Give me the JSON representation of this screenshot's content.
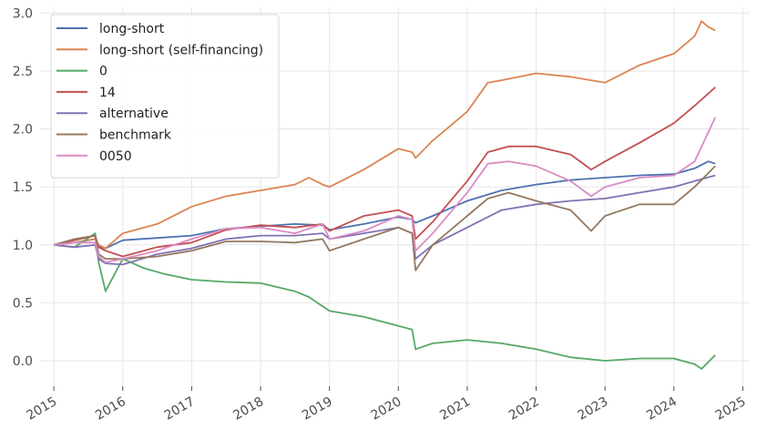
{
  "chart_data": {
    "type": "line",
    "title": "",
    "xlabel": "",
    "ylabel": "",
    "xlim": [
      2014.8,
      2025.1
    ],
    "ylim": [
      -0.22,
      3.05
    ],
    "grid": true,
    "legend_position": "top-left",
    "x_ticks": [
      {
        "value": 2015,
        "label": "2015"
      },
      {
        "value": 2016,
        "label": "2016"
      },
      {
        "value": 2017,
        "label": "2017"
      },
      {
        "value": 2018,
        "label": "2018"
      },
      {
        "value": 2019,
        "label": "2019"
      },
      {
        "value": 2020,
        "label": "2020"
      },
      {
        "value": 2021,
        "label": "2021"
      },
      {
        "value": 2022,
        "label": "2022"
      },
      {
        "value": 2023,
        "label": "2023"
      },
      {
        "value": 2024,
        "label": "2024"
      },
      {
        "value": 2025,
        "label": "2025"
      }
    ],
    "y_ticks": [
      {
        "value": 0.0,
        "label": "0.0"
      },
      {
        "value": 0.5,
        "label": "0.5"
      },
      {
        "value": 1.0,
        "label": "1.0"
      },
      {
        "value": 1.5,
        "label": "1.5"
      },
      {
        "value": 2.0,
        "label": "2.0"
      },
      {
        "value": 2.5,
        "label": "2.5"
      },
      {
        "value": 3.0,
        "label": "3.0"
      }
    ],
    "series": [
      {
        "name": "long-short",
        "color": "#4c72b0",
        "x": [
          2015.0,
          2015.3,
          2015.6,
          2015.65,
          2015.75,
          2016.0,
          2016.5,
          2017.0,
          2017.5,
          2018.0,
          2018.5,
          2018.9,
          2019.0,
          2019.5,
          2020.0,
          2020.2,
          2020.25,
          2020.5,
          2021.0,
          2021.5,
          2022.0,
          2022.5,
          2023.0,
          2023.5,
          2024.0,
          2024.3,
          2024.5,
          2024.6
        ],
        "y": [
          1.0,
          1.02,
          1.05,
          0.99,
          0.97,
          1.04,
          1.06,
          1.08,
          1.14,
          1.16,
          1.18,
          1.17,
          1.13,
          1.18,
          1.24,
          1.22,
          1.19,
          1.25,
          1.38,
          1.47,
          1.52,
          1.56,
          1.58,
          1.6,
          1.61,
          1.66,
          1.72,
          1.7
        ]
      },
      {
        "name": "long-short (self-financing)",
        "color": "#dd8452",
        "x": [
          2015.0,
          2015.3,
          2015.6,
          2015.65,
          2015.75,
          2016.0,
          2016.5,
          2017.0,
          2017.5,
          2018.0,
          2018.5,
          2018.7,
          2018.9,
          2019.0,
          2019.5,
          2020.0,
          2020.2,
          2020.25,
          2020.5,
          2021.0,
          2021.3,
          2021.5,
          2022.0,
          2022.5,
          2023.0,
          2023.5,
          2024.0,
          2024.3,
          2024.4,
          2024.5,
          2024.6
        ],
        "y": [
          1.0,
          1.02,
          1.05,
          1.0,
          0.97,
          1.1,
          1.18,
          1.33,
          1.42,
          1.47,
          1.52,
          1.58,
          1.52,
          1.5,
          1.65,
          1.83,
          1.8,
          1.75,
          1.9,
          2.15,
          2.4,
          2.42,
          2.48,
          2.45,
          2.4,
          2.55,
          2.65,
          2.8,
          2.93,
          2.88,
          2.85
        ]
      },
      {
        "name": "0",
        "color": "#55a868",
        "x": [
          2015.0,
          2015.3,
          2015.6,
          2015.65,
          2015.75,
          2016.0,
          2016.3,
          2016.6,
          2017.0,
          2017.5,
          2018.0,
          2018.5,
          2018.7,
          2019.0,
          2019.5,
          2020.0,
          2020.2,
          2020.25,
          2020.5,
          2021.0,
          2021.5,
          2022.0,
          2022.5,
          2023.0,
          2023.5,
          2024.0,
          2024.3,
          2024.4,
          2024.6
        ],
        "y": [
          1.0,
          0.98,
          1.1,
          0.85,
          0.6,
          0.88,
          0.8,
          0.75,
          0.7,
          0.68,
          0.67,
          0.6,
          0.55,
          0.43,
          0.38,
          0.3,
          0.27,
          0.1,
          0.15,
          0.18,
          0.15,
          0.1,
          0.03,
          0.0,
          0.02,
          0.02,
          -0.03,
          -0.07,
          0.05
        ]
      },
      {
        "name": "14",
        "color": "#c44e52",
        "x": [
          2015.0,
          2015.3,
          2015.6,
          2015.65,
          2015.75,
          2016.0,
          2016.5,
          2017.0,
          2017.5,
          2018.0,
          2018.5,
          2018.9,
          2019.0,
          2019.5,
          2020.0,
          2020.2,
          2020.25,
          2020.5,
          2021.0,
          2021.3,
          2021.6,
          2022.0,
          2022.5,
          2022.8,
          2023.0,
          2023.5,
          2024.0,
          2024.3,
          2024.6
        ],
        "y": [
          1.0,
          1.04,
          1.08,
          0.98,
          0.95,
          0.9,
          0.98,
          1.02,
          1.13,
          1.17,
          1.15,
          1.18,
          1.12,
          1.25,
          1.3,
          1.25,
          1.05,
          1.2,
          1.55,
          1.8,
          1.85,
          1.85,
          1.78,
          1.65,
          1.72,
          1.88,
          2.05,
          2.2,
          2.36
        ]
      },
      {
        "name": "alternative",
        "color": "#8172b3",
        "x": [
          2015.0,
          2015.3,
          2015.6,
          2015.65,
          2015.75,
          2016.0,
          2016.5,
          2017.0,
          2017.5,
          2018.0,
          2018.5,
          2018.9,
          2019.0,
          2019.5,
          2020.0,
          2020.2,
          2020.25,
          2020.5,
          2021.0,
          2021.5,
          2022.0,
          2022.5,
          2023.0,
          2023.5,
          2024.0,
          2024.3,
          2024.6
        ],
        "y": [
          1.0,
          0.98,
          1.0,
          0.88,
          0.84,
          0.83,
          0.92,
          0.97,
          1.05,
          1.08,
          1.08,
          1.1,
          1.05,
          1.1,
          1.15,
          1.1,
          0.88,
          1.0,
          1.15,
          1.3,
          1.35,
          1.38,
          1.4,
          1.45,
          1.5,
          1.55,
          1.6
        ]
      },
      {
        "name": "benchmark",
        "color": "#937860",
        "x": [
          2015.0,
          2015.3,
          2015.6,
          2015.65,
          2015.75,
          2016.0,
          2016.5,
          2017.0,
          2017.5,
          2018.0,
          2018.5,
          2018.9,
          2019.0,
          2019.5,
          2020.0,
          2020.2,
          2020.25,
          2020.5,
          2021.0,
          2021.3,
          2021.6,
          2022.0,
          2022.5,
          2022.8,
          2023.0,
          2023.5,
          2024.0,
          2024.3,
          2024.6
        ],
        "y": [
          1.0,
          1.05,
          1.08,
          0.92,
          0.88,
          0.88,
          0.9,
          0.95,
          1.03,
          1.03,
          1.02,
          1.05,
          0.95,
          1.05,
          1.15,
          1.1,
          0.78,
          1.0,
          1.25,
          1.4,
          1.45,
          1.38,
          1.3,
          1.12,
          1.25,
          1.35,
          1.35,
          1.5,
          1.68
        ]
      },
      {
        "name": "0050",
        "color": "#da8bc3",
        "x": [
          2015.0,
          2015.3,
          2015.6,
          2015.65,
          2015.75,
          2016.0,
          2016.5,
          2017.0,
          2017.5,
          2018.0,
          2018.5,
          2018.9,
          2019.0,
          2019.5,
          2020.0,
          2020.2,
          2020.25,
          2020.5,
          2021.0,
          2021.3,
          2021.6,
          2022.0,
          2022.5,
          2022.8,
          2023.0,
          2023.5,
          2024.0,
          2024.3,
          2024.6
        ],
        "y": [
          1.0,
          1.02,
          1.02,
          0.9,
          0.85,
          0.88,
          0.95,
          1.05,
          1.14,
          1.15,
          1.1,
          1.18,
          1.05,
          1.12,
          1.25,
          1.22,
          0.95,
          1.1,
          1.45,
          1.7,
          1.72,
          1.68,
          1.55,
          1.42,
          1.5,
          1.58,
          1.6,
          1.72,
          2.1
        ]
      }
    ]
  }
}
